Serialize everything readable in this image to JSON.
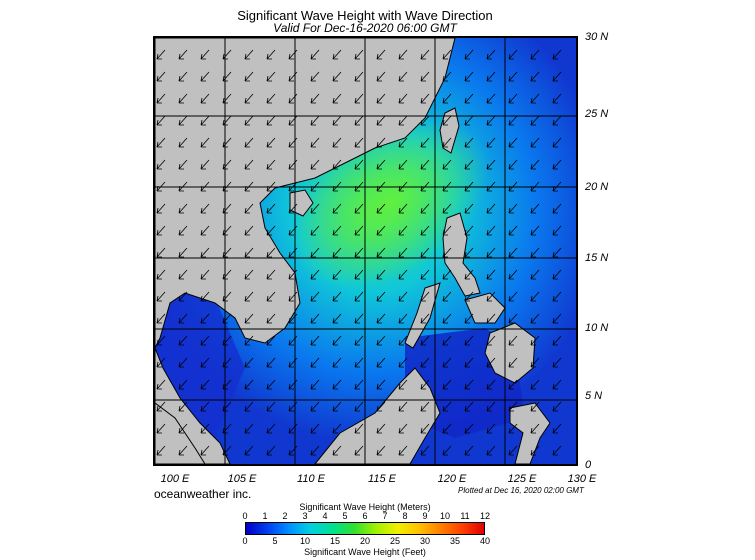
{
  "title": "Significant Wave Height with Wave Direction",
  "subtitle": "Valid For Dec-16-2020 06:00 GMT",
  "credit": "oceanweather inc.",
  "plotted_text": "Plotted at Dec 16, 2020 02:00 GMT",
  "lat_labels": [
    "30 N",
    "25 N",
    "20 N",
    "15 N",
    "10 N",
    "5 N",
    "0"
  ],
  "lon_labels": [
    "100 E",
    "105 E",
    "110 E",
    "115 E",
    "120 E",
    "125 E",
    "130 E"
  ],
  "map_extent": {
    "lon": [
      100,
      130
    ],
    "lat": [
      0,
      30
    ]
  },
  "colorbar": {
    "title_meters": "Significant Wave Height (Meters)",
    "title_feet": "Significant Wave Height (Feet)",
    "meters_ticks": [
      "0",
      "1",
      "2",
      "3",
      "4",
      "5",
      "6",
      "7",
      "8",
      "9",
      "10",
      "11",
      "12"
    ],
    "feet_ticks": [
      "0",
      "5",
      "10",
      "15",
      "20",
      "25",
      "30",
      "35",
      "40"
    ],
    "colors": [
      "#0000c8",
      "#0040f0",
      "#0090ff",
      "#00d0e0",
      "#00e090",
      "#30e030",
      "#a0f000",
      "#f0f000",
      "#ffc000",
      "#ff8000",
      "#ff4000",
      "#e00000"
    ]
  },
  "colors": {
    "land": "#c0c0c0",
    "sea_low": "#1030d0",
    "sea_mid": "#00b8f0",
    "sea_high": "#50e060",
    "grid": "#000000"
  },
  "wave_direction": "north-east swell, arrows pointing south-west"
}
